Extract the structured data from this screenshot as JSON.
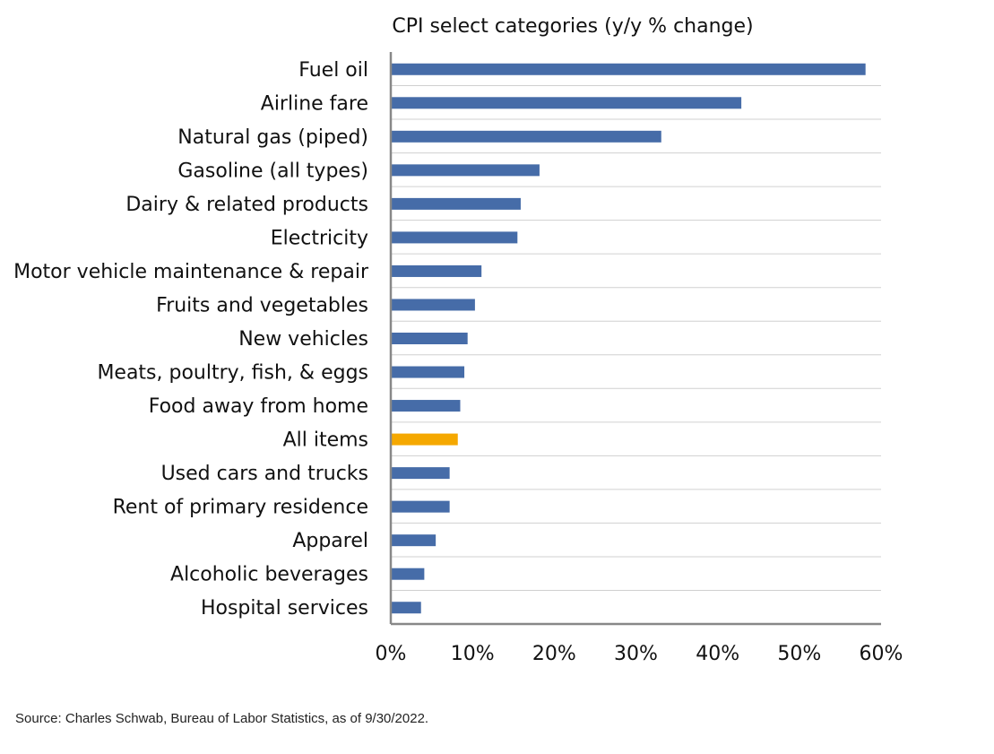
{
  "chart_data": {
    "type": "bar",
    "orientation": "horizontal",
    "title": "CPI select categories (y/y % change)",
    "xlabel": "",
    "ylabel": "",
    "categories": [
      "Fuel oil",
      "Airline fare",
      "Natural gas (piped)",
      "Gasoline (all types)",
      "Dairy & related products",
      "Electricity",
      "Motor vehicle maintenance & repair",
      "Fruits and vegetables",
      "New vehicles",
      "Meats, poultry, fish, & eggs",
      "Food away from home",
      "All items",
      "Used cars and trucks",
      "Rent of primary residence",
      "Apparel",
      "Alcoholic beverages",
      "Hospital services"
    ],
    "values": [
      58.1,
      42.9,
      33.1,
      18.2,
      15.9,
      15.5,
      11.1,
      10.3,
      9.4,
      9.0,
      8.5,
      8.2,
      7.2,
      7.2,
      5.5,
      4.1,
      3.7
    ],
    "highlight_category": "All items",
    "xlim": [
      0,
      60
    ],
    "xticks": [
      0,
      10,
      20,
      30,
      40,
      50,
      60
    ],
    "xtick_labels": [
      "0%",
      "10%",
      "20%",
      "30%",
      "40%",
      "50%",
      "60%"
    ],
    "grid": "horizontal row separators",
    "legend": "none",
    "colors": {
      "bar": "#466ca8",
      "highlight": "#f5a800",
      "grid": "#d0d0d0",
      "axis": "#888888"
    }
  },
  "source": "Source: Charles Schwab, Bureau of Labor Statistics, as of 9/30/2022."
}
